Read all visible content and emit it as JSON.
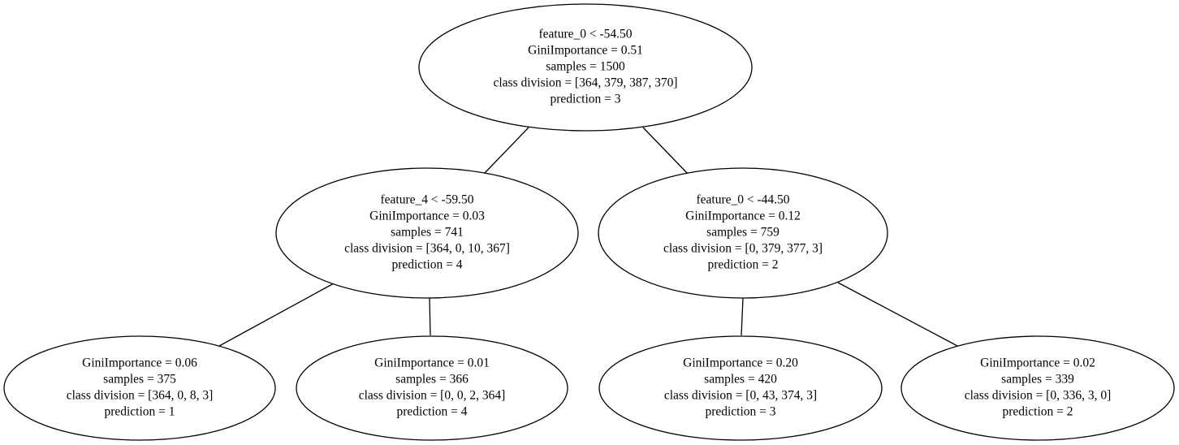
{
  "tree": {
    "nodes": [
      {
        "id": "root",
        "lines": [
          "feature_0 < -54.50",
          "GiniImportance = 0.51",
          "samples = 1500",
          "class division = [364, 379, 387, 370]",
          "prediction = 3"
        ]
      },
      {
        "id": "left",
        "lines": [
          "feature_4 < -59.50",
          "GiniImportance = 0.03",
          "samples = 741",
          "class division = [364, 0, 10, 367]",
          "prediction = 4"
        ]
      },
      {
        "id": "right",
        "lines": [
          "feature_0 < -44.50",
          "GiniImportance = 0.12",
          "samples = 759",
          "class division = [0, 379, 377, 3]",
          "prediction = 2"
        ]
      },
      {
        "id": "left-left",
        "lines": [
          "GiniImportance = 0.06",
          "samples = 375",
          "class division = [364, 0, 8, 3]",
          "prediction = 1"
        ]
      },
      {
        "id": "left-right",
        "lines": [
          "GiniImportance = 0.01",
          "samples = 366",
          "class division = [0, 0, 2, 364]",
          "prediction = 4"
        ]
      },
      {
        "id": "right-left",
        "lines": [
          "GiniImportance = 0.20",
          "samples = 420",
          "class division = [0, 43, 374, 3]",
          "prediction = 3"
        ]
      },
      {
        "id": "right-right",
        "lines": [
          "GiniImportance = 0.02",
          "samples = 339",
          "class division = [0, 336, 3, 0]",
          "prediction = 2"
        ]
      }
    ],
    "edges": [
      {
        "from": "root",
        "to": "left"
      },
      {
        "from": "root",
        "to": "right"
      },
      {
        "from": "left",
        "to": "left-left"
      },
      {
        "from": "left",
        "to": "left-right"
      },
      {
        "from": "right",
        "to": "right-left"
      },
      {
        "from": "right",
        "to": "right-right"
      }
    ]
  }
}
